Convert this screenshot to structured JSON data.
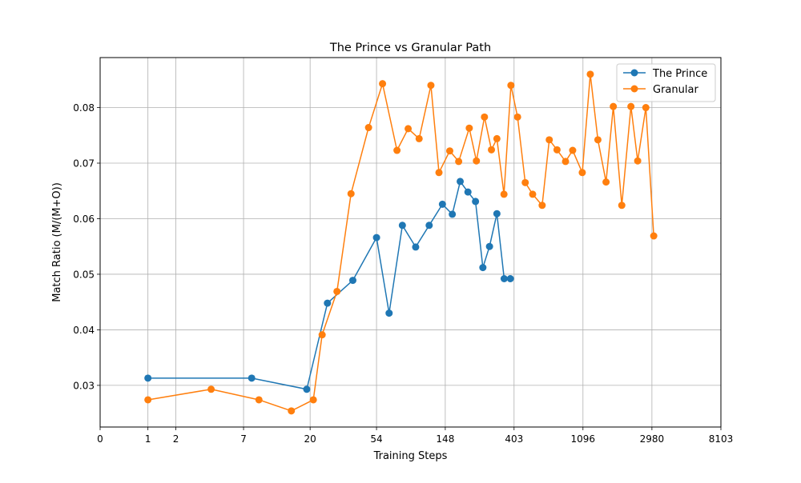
{
  "chart_data": {
    "type": "line",
    "title": "The Prince vs Granular Path",
    "xlabel": "Training Steps",
    "ylabel": "Match Ratio (M/(M+O))",
    "x_scale": "log1p",
    "x_ticks": [
      0,
      1,
      2,
      7,
      20,
      54,
      148,
      403,
      1096,
      2980,
      8103
    ],
    "x_tick_labels": [
      "0",
      "1",
      "2",
      "7",
      "20",
      "54",
      "148",
      "403",
      "1096",
      "2980",
      "8103"
    ],
    "xlim": [
      0,
      8103
    ],
    "y_ticks": [
      0.03,
      0.04,
      0.05,
      0.06,
      0.07,
      0.08
    ],
    "y_tick_labels": [
      "0.03",
      "0.04",
      "0.05",
      "0.06",
      "0.07",
      "0.08"
    ],
    "ylim": [
      0.0225,
      0.089
    ],
    "grid": true,
    "legend_position": "top-right",
    "series": [
      {
        "name": "The Prince",
        "color": "#1f77b4",
        "marker": "circle",
        "x": [
          1,
          8,
          19,
          26,
          38,
          54,
          65,
          79,
          96,
          117,
          142,
          164,
          184,
          206,
          230,
          256,
          282,
          314,
          349,
          382
        ],
        "y": [
          0.0313,
          0.0313,
          0.0293,
          0.0448,
          0.0489,
          0.0566,
          0.043,
          0.0588,
          0.0549,
          0.0588,
          0.0626,
          0.0608,
          0.0667,
          0.0648,
          0.0631,
          0.0512,
          0.055,
          0.0609,
          0.0492,
          0.0492
        ]
      },
      {
        "name": "Granular",
        "color": "#ff7f0e",
        "marker": "circle",
        "x": [
          1,
          4,
          9,
          15,
          21,
          24,
          30,
          37,
          48,
          59,
          73,
          86,
          101,
          120,
          135,
          158,
          180,
          210,
          233,
          262,
          290,
          314,
          348,
          385,
          424,
          474,
          528,
          606,
          672,
          752,
          851,
          944,
          1085,
          1219,
          1361,
          1532,
          1702,
          1925,
          2198,
          2424,
          2729,
          3060
        ],
        "y": [
          0.0274,
          0.0293,
          0.0274,
          0.0254,
          0.0274,
          0.0391,
          0.0469,
          0.0645,
          0.0764,
          0.0843,
          0.0723,
          0.0762,
          0.0744,
          0.084,
          0.0683,
          0.0722,
          0.0703,
          0.0763,
          0.0704,
          0.0783,
          0.0724,
          0.0744,
          0.0644,
          0.084,
          0.0783,
          0.0665,
          0.0644,
          0.0624,
          0.0742,
          0.0724,
          0.0703,
          0.0723,
          0.0683,
          0.086,
          0.0742,
          0.0666,
          0.0802,
          0.0624,
          0.0802,
          0.0704,
          0.08,
          0.0569
        ]
      }
    ]
  }
}
